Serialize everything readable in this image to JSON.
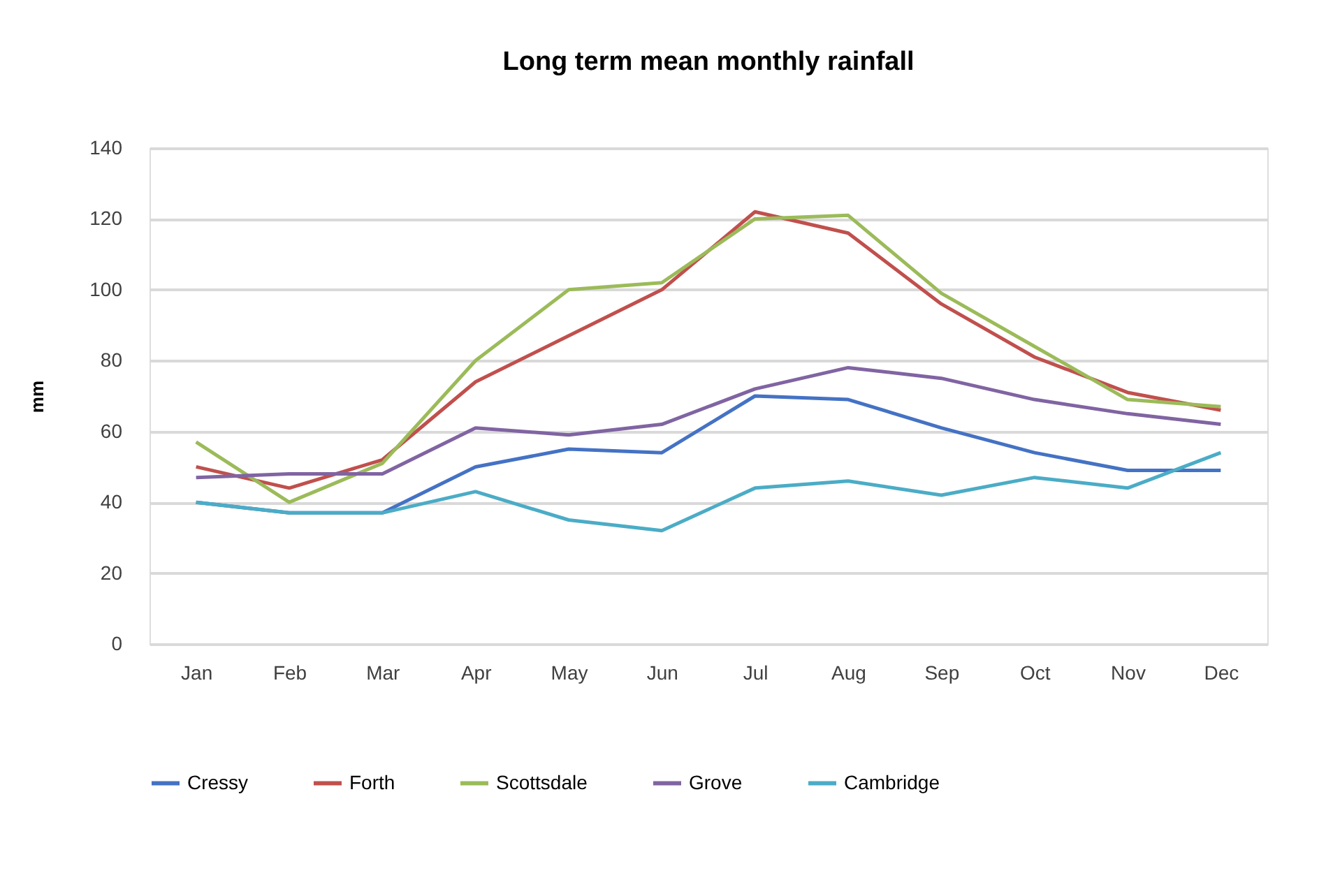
{
  "chart_data": {
    "type": "line",
    "title": "Long term mean monthly rainfall",
    "ylabel": "mm",
    "categories": [
      "Jan",
      "Feb",
      "Mar",
      "Apr",
      "May",
      "Jun",
      "Jul",
      "Aug",
      "Sep",
      "Oct",
      "Nov",
      "Dec"
    ],
    "series": [
      {
        "name": "Cressy",
        "color": "#4472c4",
        "values": [
          40,
          37,
          37,
          50,
          55,
          54,
          70,
          69,
          61,
          54,
          49,
          49
        ]
      },
      {
        "name": "Forth",
        "color": "#c0504d",
        "values": [
          50,
          44,
          52,
          74,
          87,
          100,
          122,
          116,
          96,
          81,
          71,
          66
        ]
      },
      {
        "name": "Scottsdale",
        "color": "#9bbb59",
        "values": [
          57,
          40,
          51,
          80,
          100,
          102,
          120,
          121,
          99,
          84,
          69,
          67
        ]
      },
      {
        "name": "Grove",
        "color": "#8064a2",
        "values": [
          47,
          48,
          48,
          61,
          59,
          62,
          72,
          78,
          75,
          69,
          65,
          62
        ]
      },
      {
        "name": "Cambridge",
        "color": "#4bacc6",
        "values": [
          40,
          37,
          37,
          43,
          35,
          32,
          44,
          46,
          42,
          47,
          44,
          54
        ]
      }
    ],
    "ylim": [
      0,
      140
    ],
    "yticks": [
      0,
      20,
      40,
      60,
      80,
      100,
      120,
      140
    ],
    "grid": "y",
    "legend": "bottom",
    "marker": "none",
    "line_style": "solid"
  }
}
